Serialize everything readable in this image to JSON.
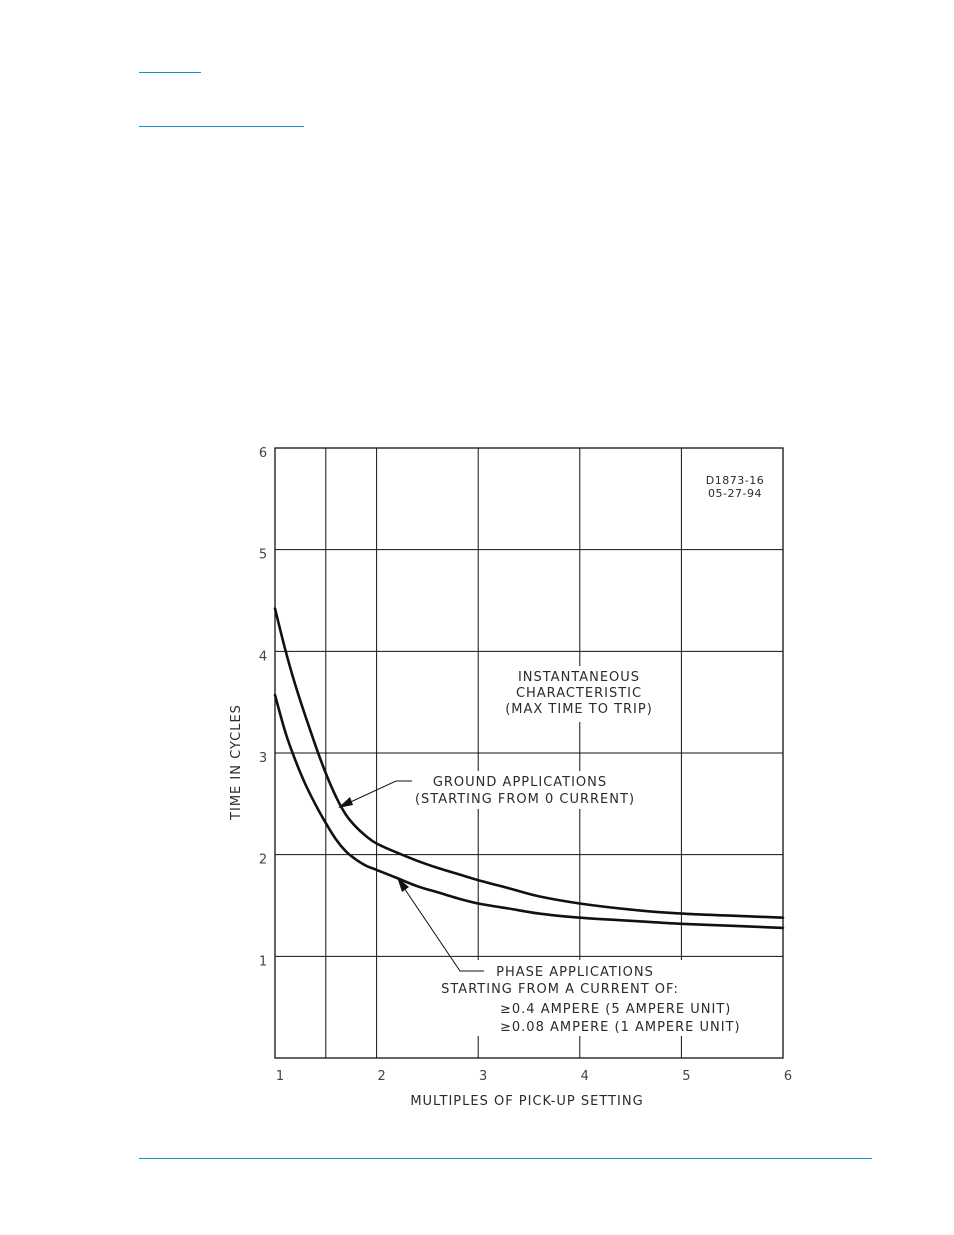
{
  "chart_data": {
    "type": "line",
    "title": "",
    "xlabel": "MULTIPLES OF PICK-UP SETTING",
    "ylabel": "TIME IN CYCLES",
    "xlim": [
      1,
      6
    ],
    "ylim": [
      0,
      6
    ],
    "x_gridlines": [
      1.5,
      2,
      3,
      4,
      5
    ],
    "y_gridlines": [
      1,
      2,
      3,
      4,
      5
    ],
    "x_ticks": [
      "1",
      "2",
      "3",
      "4",
      "5",
      "6"
    ],
    "y_ticks": [
      "1",
      "2",
      "3",
      "4",
      "5",
      "6"
    ],
    "grid": true,
    "drawing_id": [
      "D1873-16",
      "05-27-94"
    ],
    "series": [
      {
        "key": "ground",
        "x": [
          1.0,
          1.1,
          1.2,
          1.3,
          1.4,
          1.5,
          1.6,
          1.7,
          1.8,
          1.9,
          2.0,
          2.2,
          2.4,
          2.6,
          2.8,
          3.0,
          3.3,
          3.6,
          4.0,
          4.5,
          5.0,
          5.5,
          6.0
        ],
        "y": [
          4.42,
          4.02,
          3.67,
          3.36,
          3.07,
          2.8,
          2.57,
          2.39,
          2.27,
          2.18,
          2.11,
          2.02,
          1.94,
          1.87,
          1.81,
          1.75,
          1.67,
          1.59,
          1.52,
          1.46,
          1.42,
          1.4,
          1.38
        ]
      },
      {
        "key": "phase",
        "x": [
          1.0,
          1.1,
          1.2,
          1.3,
          1.4,
          1.5,
          1.6,
          1.7,
          1.8,
          1.9,
          2.0,
          2.2,
          2.4,
          2.6,
          2.8,
          3.0,
          3.3,
          3.6,
          4.0,
          4.5,
          5.0,
          5.5,
          6.0
        ],
        "y": [
          3.57,
          3.21,
          2.93,
          2.69,
          2.49,
          2.31,
          2.15,
          2.03,
          1.95,
          1.89,
          1.85,
          1.77,
          1.69,
          1.63,
          1.57,
          1.52,
          1.47,
          1.42,
          1.38,
          1.35,
          1.32,
          1.3,
          1.28
        ]
      }
    ],
    "annotations": {
      "instantaneous": [
        "INSTANTANEOUS",
        "CHARACTERISTIC",
        "(MAX TIME TO TRIP)"
      ],
      "ground": [
        "GROUND APPLICATIONS",
        "(STARTING FROM 0 CURRENT)"
      ],
      "phase": [
        "PHASE APPLICATIONS",
        "STARTING FROM A CURRENT OF:",
        "≥0.4 AMPERE (5 AMPERE UNIT)",
        "≥0.08 AMPERE (1 AMPERE UNIT)"
      ]
    }
  }
}
